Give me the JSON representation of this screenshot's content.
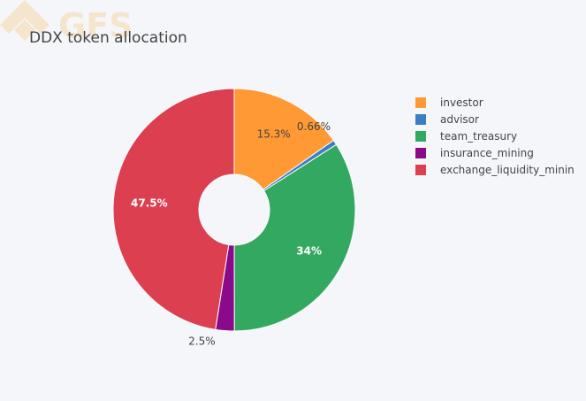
{
  "watermark": {
    "text": "GFS",
    "icon": "gfs-logo-icon",
    "color": "#f6c77c"
  },
  "chart_data": {
    "type": "pie",
    "hole": true,
    "title": "DDX token allocation",
    "legend_position": "right",
    "slices": [
      {
        "name": "investor",
        "value": 15.3,
        "label": "15.3%",
        "color": "#ff9933",
        "label_inside": true,
        "label_color": "#444444"
      },
      {
        "name": "advisor",
        "value": 0.66,
        "label": "0.66%",
        "color": "#3a7fc4",
        "label_inside": false,
        "label_color": "#444444"
      },
      {
        "name": "team_treasury",
        "value": 34,
        "label": "34%",
        "color": "#33a860",
        "label_inside": true,
        "label_color": "#ffffff"
      },
      {
        "name": "insurance_mining",
        "value": 2.5,
        "label": "2.5%",
        "color": "#8a0a8a",
        "label_inside": false,
        "label_color": "#444444"
      },
      {
        "name": "exchange_liquidity_minin",
        "value": 47.5,
        "label": "47.5%",
        "color": "#dc3f50",
        "label_inside": true,
        "label_color": "#ffffff"
      }
    ]
  }
}
